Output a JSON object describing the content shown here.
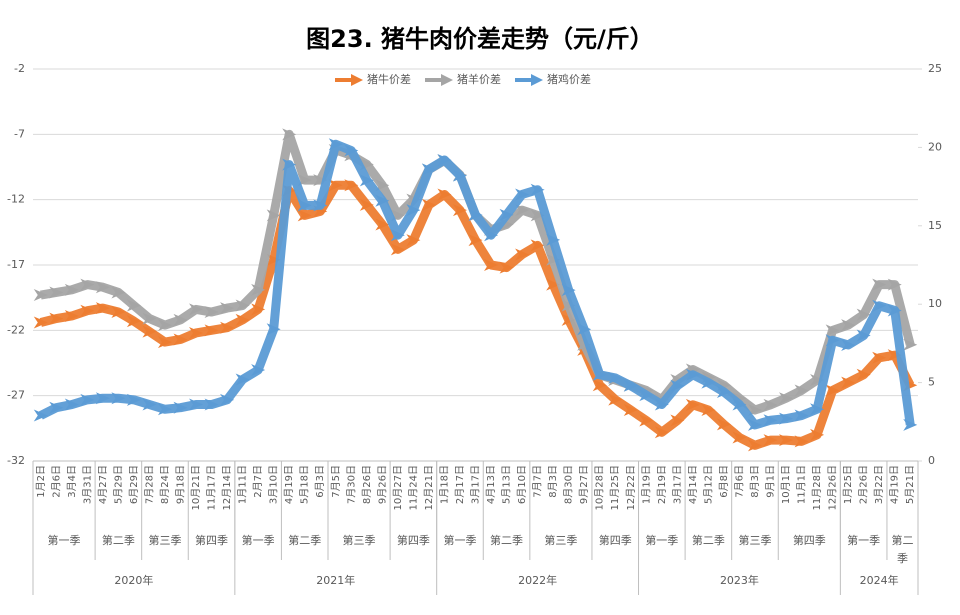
{
  "chart_data": {
    "type": "line",
    "title": "图23. 猪牛肉价差走势（元/斤）",
    "categories": [
      "1月2日",
      "2月6日",
      "3月4日",
      "3月31日",
      "4月27日",
      "5月29日",
      "6月29日",
      "7月28日",
      "8月24日",
      "9月18日",
      "10月21日",
      "11月17日",
      "12月14日",
      "1月11日",
      "2月7日",
      "3月10日",
      "4月19日",
      "5月18日",
      "6月3日",
      "7月5日",
      "7月30日",
      "8月26日",
      "9月26日",
      "10月27日",
      "11月24日",
      "12月21日",
      "1月18日",
      "2月17日",
      "3月17日",
      "4月13日",
      "5月13日",
      "6月10日",
      "7月7日",
      "8月3日",
      "8月30日",
      "9月27日",
      "10月28日",
      "11月25日",
      "12月22日",
      "1月19日",
      "2月19日",
      "3月17日",
      "4月14日",
      "5月12日",
      "6月8日",
      "7月6日",
      "8月3日",
      "9月1日",
      "10月1日",
      "11月1日",
      "11月28日",
      "12月26日",
      "1月25日",
      "2月26日",
      "3月22日",
      "4月19日",
      "5月21日"
    ],
    "quarters": [
      "第一季",
      "第一季",
      "第一季",
      "第一季",
      "第二季",
      "第二季",
      "第二季",
      "第三季",
      "第三季",
      "第三季",
      "第四季",
      "第四季",
      "第四季",
      "第一季",
      "第一季",
      "第一季",
      "第二季",
      "第二季",
      "第二季",
      "第三季",
      "第三季",
      "第三季",
      "第三季",
      "第四季",
      "第四季",
      "第四季",
      "第一季",
      "第一季",
      "第一季",
      "第二季",
      "第二季",
      "第二季",
      "第三季",
      "第三季",
      "第三季",
      "第三季",
      "第四季",
      "第四季",
      "第四季",
      "第一季",
      "第一季",
      "第一季",
      "第二季",
      "第二季",
      "第二季",
      "第三季",
      "第三季",
      "第三季",
      "第四季",
      "第四季",
      "第四季",
      "第四季",
      "第一季",
      "第一季",
      "第一季",
      "第二季",
      "第二季"
    ],
    "years": [
      "2020年",
      "2020年",
      "2020年",
      "2020年",
      "2020年",
      "2020年",
      "2020年",
      "2020年",
      "2020年",
      "2020年",
      "2020年",
      "2020年",
      "2020年",
      "2021年",
      "2021年",
      "2021年",
      "2021年",
      "2021年",
      "2021年",
      "2021年",
      "2021年",
      "2021年",
      "2021年",
      "2021年",
      "2021年",
      "2021年",
      "2022年",
      "2022年",
      "2022年",
      "2022年",
      "2022年",
      "2022年",
      "2022年",
      "2022年",
      "2022年",
      "2022年",
      "2022年",
      "2022年",
      "2022年",
      "2023年",
      "2023年",
      "2023年",
      "2023年",
      "2023年",
      "2023年",
      "2023年",
      "2023年",
      "2023年",
      "2023年",
      "2023年",
      "2023年",
      "2023年",
      "2024年",
      "2024年",
      "2024年",
      "2024年",
      "2024年"
    ],
    "series": [
      {
        "name": "猪牛价差",
        "color": "#ed7d31",
        "values": [
          -21.4,
          -21.1,
          -20.9,
          -20.5,
          -20.3,
          -20.6,
          -21.3,
          -22.1,
          -22.9,
          -22.7,
          -22.2,
          -22.0,
          -21.8,
          -21.2,
          -20.4,
          -16.6,
          -11.3,
          -13.2,
          -12.9,
          -10.9,
          -10.9,
          -12.4,
          -13.9,
          -15.8,
          -15.1,
          -12.4,
          -11.6,
          -12.8,
          -15.1,
          -17.0,
          -17.2,
          -16.2,
          -15.5,
          -18.5,
          -21.2,
          -23.5,
          -26.2,
          -27.3,
          -28.1,
          -28.9,
          -29.8,
          -28.9,
          -27.7,
          -28.1,
          -29.2,
          -30.2,
          -30.8,
          -30.4,
          -30.4,
          -30.5,
          -30.0,
          -26.6,
          -26.0,
          -25.4,
          -24.1,
          -23.9,
          -26.2
        ]
      },
      {
        "name": "猪羊价差",
        "color": "#a5a5a5",
        "values": [
          -19.3,
          -19.1,
          -18.9,
          -18.5,
          -18.7,
          -19.1,
          -20.1,
          -21.1,
          -21.6,
          -21.2,
          -20.4,
          -20.6,
          -20.3,
          -20.1,
          -18.9,
          -13.2,
          -7.0,
          -10.5,
          -10.5,
          -8.2,
          -8.6,
          -9.3,
          -10.9,
          -13.2,
          -12.0,
          -9.7,
          -9.0,
          -10.1,
          -13.2,
          -14.3,
          -13.9,
          -12.8,
          -13.2,
          -16.6,
          -20.1,
          -23.1,
          -25.4,
          -25.8,
          -26.2,
          -26.6,
          -27.3,
          -25.8,
          -25.0,
          -25.6,
          -26.2,
          -27.2,
          -28.1,
          -27.7,
          -27.2,
          -26.6,
          -25.8,
          -22.0,
          -21.6,
          -20.8,
          -18.5,
          -18.5,
          -23.1
        ]
      },
      {
        "name": "猪鸡价差",
        "color": "#5b9bd5",
        "axis": "y2",
        "values": [
          2.9,
          3.4,
          3.6,
          3.9,
          4.0,
          4.0,
          3.9,
          3.6,
          3.3,
          3.4,
          3.6,
          3.6,
          3.9,
          5.2,
          5.8,
          8.4,
          18.9,
          16.3,
          16.3,
          20.2,
          19.8,
          17.9,
          16.6,
          14.4,
          16.0,
          18.6,
          19.2,
          18.2,
          15.7,
          14.4,
          15.7,
          17.0,
          17.3,
          14.1,
          10.9,
          8.4,
          5.5,
          5.3,
          4.8,
          4.2,
          3.6,
          4.8,
          5.5,
          5.0,
          4.4,
          3.6,
          2.3,
          2.6,
          2.7,
          2.9,
          3.3,
          7.7,
          7.4,
          8.0,
          9.9,
          9.6,
          2.3
        ]
      }
    ],
    "ylim": [
      -32,
      -2
    ],
    "yticks": [
      -2,
      -7,
      -12,
      -17,
      -22,
      -27,
      -32
    ],
    "y2lim": [
      0,
      25
    ],
    "y2ticks": [
      0,
      5,
      10,
      15,
      20,
      25
    ],
    "grid": true,
    "legend": "top"
  }
}
